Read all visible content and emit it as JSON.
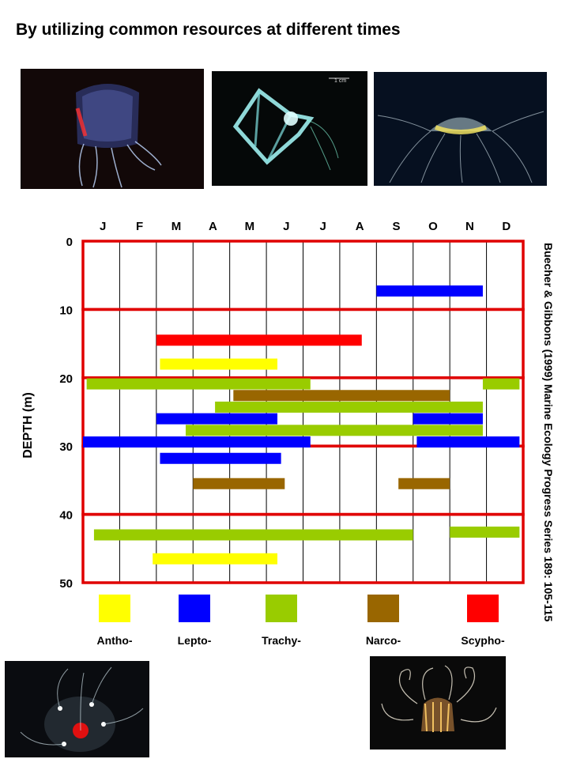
{
  "title": "By utilizing common resources at different times",
  "source": "Buecher & Gibbons (1999) Marine Ecology Progress Series 189: 105-115",
  "photo_scale_text": "1 cm",
  "chart_data": {
    "type": "bar",
    "orientation": "horizontal-ranges",
    "x_categories": [
      "J",
      "F",
      "M",
      "A",
      "M",
      "J",
      "J",
      "A",
      "S",
      "O",
      "N",
      "D"
    ],
    "ylabel": "DEPTH (m)",
    "ylim": [
      0,
      50
    ],
    "y_ticks": [
      "0",
      "10",
      "20",
      "30",
      "40",
      "50"
    ],
    "depth_bands_outlined": [
      [
        0,
        10
      ],
      [
        10,
        20
      ],
      [
        20,
        30
      ],
      [
        30,
        40
      ],
      [
        40,
        50
      ]
    ],
    "legend": [
      {
        "name": "Antho-",
        "color": "#ffff00"
      },
      {
        "name": "Lepto-",
        "color": "#0000ff"
      },
      {
        "name": "Trachy-",
        "color": "#99cc00"
      },
      {
        "name": "Narco-",
        "color": "#996600"
      },
      {
        "name": "Scypho-",
        "color": "#ff0000"
      }
    ],
    "ranges": [
      {
        "group": "Lepto-",
        "start": 8.0,
        "end": 10.9,
        "depth": 7.3
      },
      {
        "group": "Scypho-",
        "start": 2.0,
        "end": 7.6,
        "depth": 14.5
      },
      {
        "group": "Antho-",
        "start": 2.1,
        "end": 5.3,
        "depth": 18.0
      },
      {
        "group": "Trachy-",
        "start": 0.1,
        "end": 6.2,
        "depth": 20.9
      },
      {
        "group": "Trachy-",
        "start": 10.9,
        "end": 11.9,
        "depth": 20.9
      },
      {
        "group": "Narco-",
        "start": 4.1,
        "end": 10.0,
        "depth": 22.6
      },
      {
        "group": "Trachy-",
        "start": 3.6,
        "end": 10.9,
        "depth": 24.3
      },
      {
        "group": "Lepto-",
        "start": 2.0,
        "end": 5.3,
        "depth": 26.0
      },
      {
        "group": "Lepto-",
        "start": 9.0,
        "end": 10.9,
        "depth": 26.0
      },
      {
        "group": "Trachy-",
        "start": 2.8,
        "end": 10.9,
        "depth": 27.7
      },
      {
        "group": "Lepto-",
        "start": 0.0,
        "end": 6.2,
        "depth": 29.4
      },
      {
        "group": "Lepto-",
        "start": 9.1,
        "end": 11.9,
        "depth": 29.4
      },
      {
        "group": "Lepto-",
        "start": 2.1,
        "end": 5.4,
        "depth": 31.8
      },
      {
        "group": "Narco-",
        "start": 3.0,
        "end": 5.5,
        "depth": 35.5
      },
      {
        "group": "Narco-",
        "start": 8.6,
        "end": 10.0,
        "depth": 35.5
      },
      {
        "group": "Trachy-",
        "start": 0.3,
        "end": 9.0,
        "depth": 43.0
      },
      {
        "group": "Trachy-",
        "start": 10.0,
        "end": 11.9,
        "depth": 42.6
      },
      {
        "group": "Antho-",
        "start": 1.9,
        "end": 5.3,
        "depth": 46.5
      }
    ]
  }
}
